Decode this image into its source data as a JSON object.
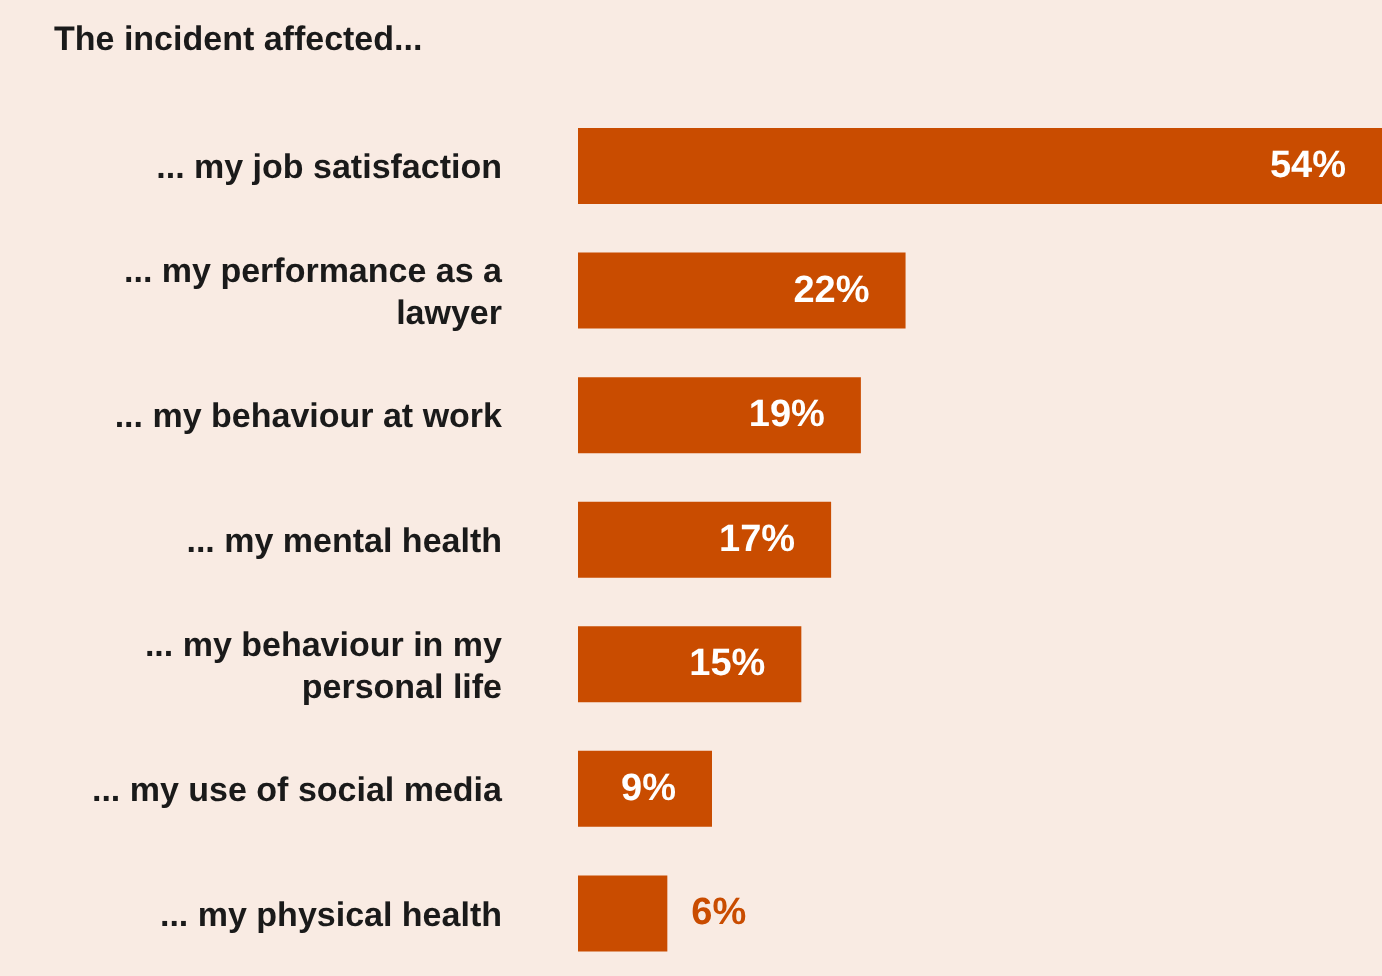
{
  "chart_data": {
    "type": "bar",
    "orientation": "horizontal",
    "title": "The incident affected...",
    "categories": [
      "... my job satisfaction",
      "... my performance as a lawyer",
      "... my behaviour at work",
      "... my mental health",
      "... my behaviour in my personal life",
      "... my use of social media",
      "... my physical health"
    ],
    "values": [
      54,
      22,
      19,
      17,
      15,
      9,
      6
    ],
    "value_labels": [
      "54%",
      "22%",
      "19%",
      "17%",
      "15%",
      "9%",
      "6%"
    ],
    "color": "#c94c00"
  }
}
